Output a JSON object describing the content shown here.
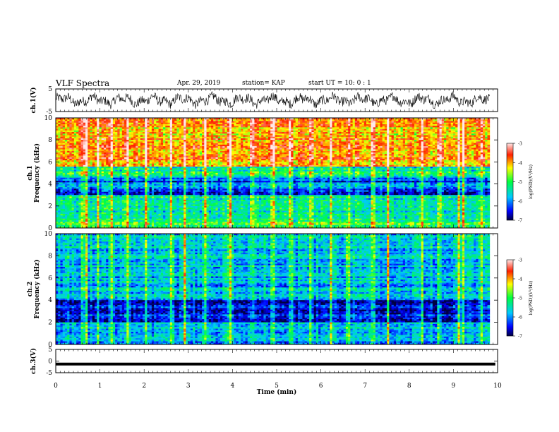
{
  "header": {
    "title": "VLF Spectra",
    "date": "Apr. 29, 2019",
    "station": "station= KAP",
    "start": "start  UT =   10: 0  : 1"
  },
  "chart_data": [
    {
      "type": "line",
      "panel": "ch1-waveform",
      "ylabel": "ch.1(V)",
      "ylim": [
        -5,
        5
      ],
      "yticks": [
        "5",
        "-5"
      ],
      "xlim": [
        0,
        10
      ],
      "series": [
        {
          "style": "noisy waveform",
          "amplitude_range": [
            -4.5,
            4.5
          ]
        }
      ]
    },
    {
      "type": "heatmap",
      "panel": "ch1-spectrogram",
      "ylabel": "ch.1\nFrequency  (kHz)",
      "ylim": [
        0,
        10
      ],
      "yticks": [
        "0",
        "2",
        "4",
        "6",
        "8",
        "10"
      ],
      "xlim": [
        0,
        10
      ],
      "colorbar": {
        "label": "log(PSD)(V²/Hz)",
        "range": [
          -7,
          -3
        ],
        "ticks": [
          "-3",
          "-4",
          "-5",
          "-6",
          "-7"
        ]
      }
    },
    {
      "type": "heatmap",
      "panel": "ch2-spectrogram",
      "ylabel": "ch.2\nFrequency  (kHz)",
      "ylim": [
        0,
        10
      ],
      "yticks": [
        "0",
        "2",
        "4",
        "6",
        "8",
        "10"
      ],
      "xlim": [
        0,
        10
      ],
      "colorbar": {
        "label": "log(PSD)(V²/Hz)",
        "range": [
          -7,
          -3
        ],
        "ticks": [
          "-3",
          "-4",
          "-5",
          "-6",
          "-7"
        ]
      }
    },
    {
      "type": "line",
      "panel": "ch3-waveform",
      "ylabel": "ch.3(V)",
      "ylim": [
        -5,
        5
      ],
      "yticks": [
        "5",
        "0",
        "-5"
      ],
      "xlim": [
        0,
        10
      ],
      "series": [
        {
          "style": "flat",
          "value": -1.3
        }
      ]
    }
  ],
  "xaxis": {
    "label": "Time  (min)",
    "ticks": [
      "0",
      "1",
      "2",
      "3",
      "4",
      "5",
      "6",
      "7",
      "8",
      "9",
      "10"
    ]
  }
}
